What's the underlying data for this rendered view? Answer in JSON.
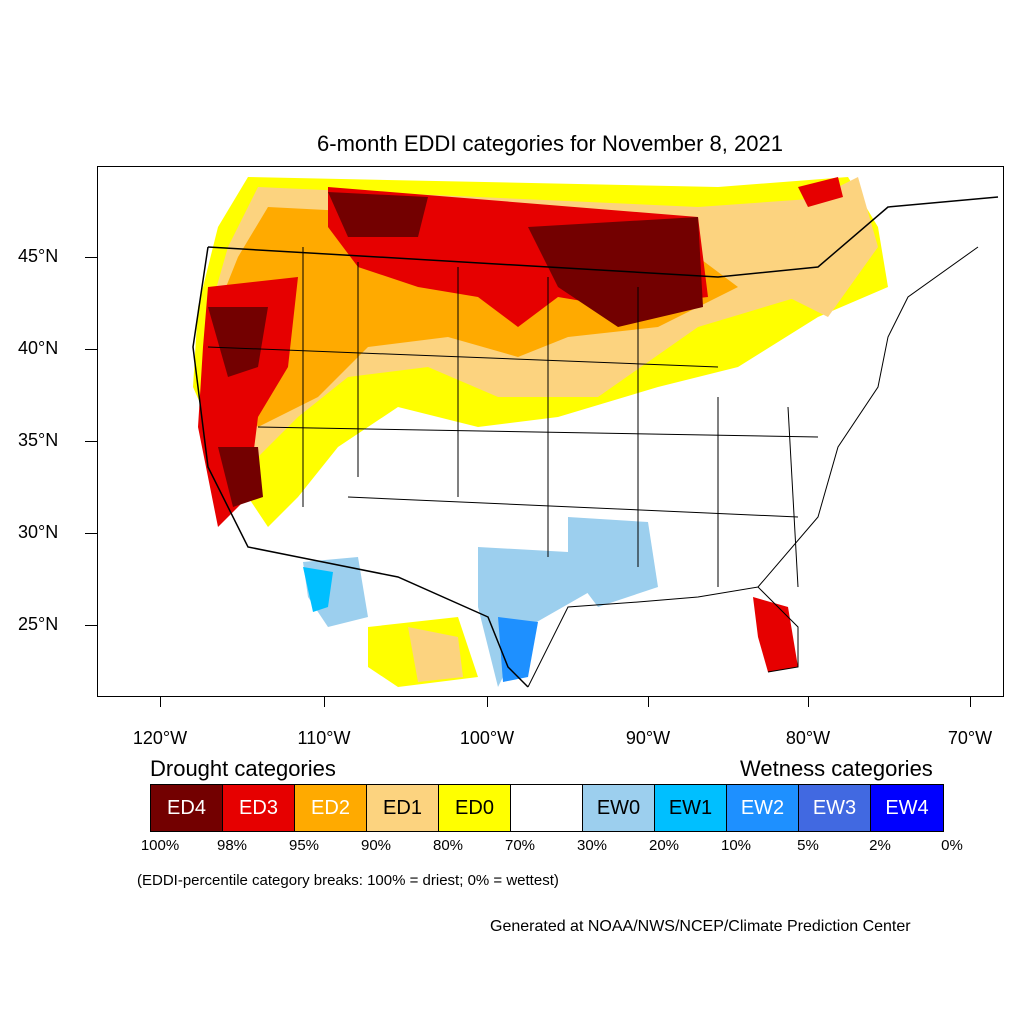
{
  "title": "6-month EDDI categories for November 8, 2021",
  "lat_labels": [
    "45°N",
    "40°N",
    "35°N",
    "30°N",
    "25°N"
  ],
  "lon_labels": [
    "120°W",
    "110°W",
    "100°W",
    "90°W",
    "80°W",
    "70°W"
  ],
  "drought_title": "Drought categories",
  "wetness_title": "Wetness categories",
  "legend": [
    {
      "label": "ED4",
      "color": "#730000",
      "text_color": "#ffffff"
    },
    {
      "label": "ED3",
      "color": "#e60000",
      "text_color": "#ffffff"
    },
    {
      "label": "ED2",
      "color": "#ffaa00",
      "text_color": "#ffffff"
    },
    {
      "label": "ED1",
      "color": "#fcd37f",
      "text_color": "#000000"
    },
    {
      "label": "ED0",
      "color": "#ffff00",
      "text_color": "#000000"
    },
    {
      "label": "",
      "color": "#ffffff",
      "text_color": "#000000"
    },
    {
      "label": "EW0",
      "color": "#9ccfee",
      "text_color": "#000000"
    },
    {
      "label": "EW1",
      "color": "#00bfff",
      "text_color": "#000000"
    },
    {
      "label": "EW2",
      "color": "#1e90ff",
      "text_color": "#ffffff"
    },
    {
      "label": "EW3",
      "color": "#4169e1",
      "text_color": "#ffffff"
    },
    {
      "label": "EW4",
      "color": "#0000ff",
      "text_color": "#ffffff"
    }
  ],
  "percent_breaks": [
    "100%",
    "98%",
    "95%",
    "90%",
    "80%",
    "70%",
    "30%",
    "20%",
    "10%",
    "5%",
    "2%",
    "0%"
  ],
  "note": "(EDDI-percentile category breaks: 100% = driest; 0% = wettest)",
  "credit": "Generated at NOAA/NWS/NCEP/Climate Prediction Center"
}
